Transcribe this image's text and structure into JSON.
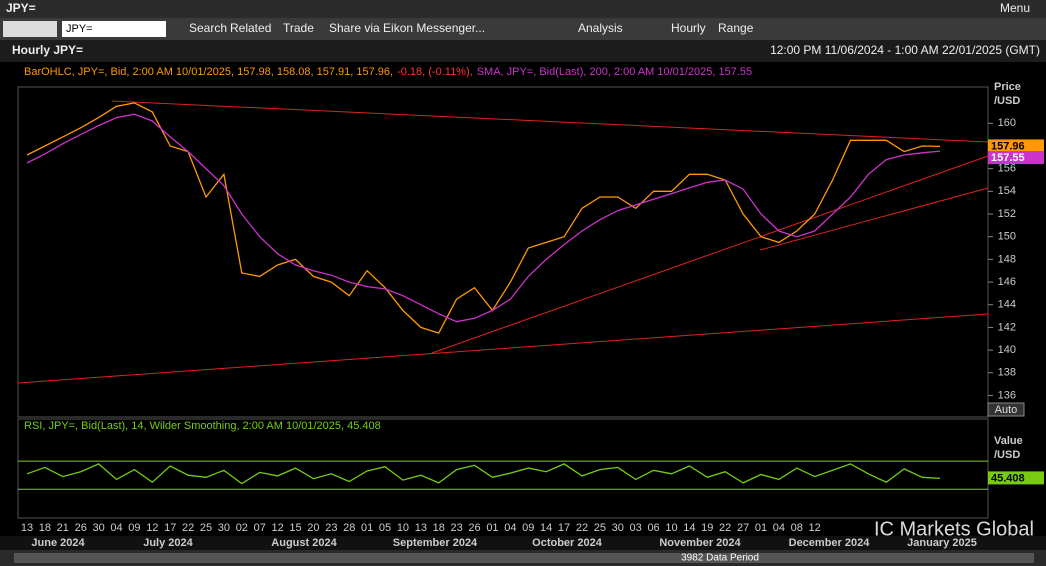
{
  "window": {
    "title": "JPY=",
    "menu": "Menu"
  },
  "toolbar": {
    "ric": "JPY=",
    "items": [
      "Search",
      "Related",
      "Trade",
      "Share via Eikon Messenger...",
      "Analysis",
      "Hourly",
      "Range"
    ]
  },
  "panel": {
    "title": "Hourly JPY=",
    "range": "12:00 PM 11/06/2024 - 1:00 AM 22/01/2025 (GMT)",
    "watermark": "IC Markets Global",
    "status": "3982 Data Period"
  },
  "chart_data": [
    {
      "type": "line",
      "y_label": [
        "Price",
        "/USD"
      ],
      "scale_button": "Auto",
      "categories": [
        "13",
        "18",
        "21",
        "26",
        "30",
        "04",
        "09",
        "12",
        "17",
        "22",
        "25",
        "30",
        "02",
        "07",
        "12",
        "15",
        "20",
        "23",
        "28",
        "01",
        "05",
        "10",
        "13",
        "18",
        "23",
        "26",
        "01",
        "04",
        "09",
        "14",
        "17",
        "22",
        "25",
        "30",
        "03",
        "06",
        "10",
        "14",
        "19",
        "22",
        "27",
        "01",
        "04",
        "08",
        "12",
        null,
        null,
        null,
        null,
        null,
        null,
        null
      ],
      "months": [
        "June 2024",
        "July 2024",
        "August 2024",
        "September 2024",
        "October 2024",
        "November 2024",
        "December 2024",
        "January 2025"
      ],
      "ylim": [
        134.1,
        163.2
      ],
      "yticks": [
        136,
        138,
        140,
        142,
        144,
        146,
        148,
        150,
        152,
        154,
        156,
        158,
        160
      ],
      "series": [
        {
          "name": "BarOHLC, JPY=, Bid, 2:00 AM 10/01/2025, 157.98, 158.08, 157.91, 157.96,",
          "change": "-0.18, (-0.11%),",
          "color": "#ff9900",
          "values": [
            157.2,
            158.0,
            158.8,
            159.6,
            160.5,
            161.5,
            161.8,
            161.0,
            158.0,
            157.5,
            153.5,
            155.5,
            146.8,
            146.5,
            147.5,
            148.0,
            146.5,
            146.0,
            144.8,
            147.0,
            145.5,
            143.5,
            142.0,
            141.5,
            144.5,
            145.5,
            143.5,
            146.0,
            149.0,
            149.5,
            150.0,
            152.5,
            153.5,
            153.5,
            152.5,
            154.0,
            154.0,
            155.5,
            155.5,
            155.0,
            152.0,
            150.0,
            149.5,
            150.5,
            152.0,
            155.0,
            158.5,
            158.5,
            158.5,
            157.5,
            158.0,
            157.96
          ]
        },
        {
          "name": "SMA, JPY=, Bid(Last), 200, 2:00 AM 10/01/2025, 157.55",
          "color": "#cc33cc",
          "values": [
            156.5,
            157.3,
            158.2,
            159.0,
            159.8,
            160.5,
            160.8,
            160.2,
            158.8,
            157.5,
            156.0,
            154.5,
            152.0,
            150.0,
            148.5,
            147.5,
            147.0,
            146.6,
            146.0,
            145.6,
            145.4,
            144.8,
            144.0,
            143.2,
            142.5,
            142.8,
            143.5,
            144.5,
            146.5,
            148.0,
            149.3,
            150.5,
            151.5,
            152.3,
            152.8,
            153.3,
            153.8,
            154.3,
            154.8,
            155.0,
            154.2,
            152.0,
            150.5,
            150.0,
            150.5,
            152.0,
            153.5,
            155.5,
            156.8,
            157.2,
            157.4,
            157.55
          ]
        }
      ]
    },
    {
      "type": "line",
      "y_label": [
        "Value",
        "/USD"
      ],
      "ylim": [
        -11,
        130
      ],
      "levels": [
        30,
        70
      ],
      "series": [
        {
          "name": "RSI, JPY=, Bid(Last), 14, Wilder Smoothing, 2:00 AM 10/01/2025, 45.408",
          "color": "#77cc11",
          "values": [
            52,
            61,
            48,
            55,
            66,
            44,
            58,
            40,
            63,
            50,
            47,
            57,
            38,
            54,
            49,
            60,
            45,
            52,
            41,
            56,
            62,
            43,
            50,
            39,
            58,
            64,
            47,
            53,
            60,
            55,
            66,
            49,
            58,
            61,
            44,
            57,
            52,
            63,
            47,
            55,
            39,
            51,
            44,
            60,
            48,
            57,
            66,
            52,
            40,
            59,
            47,
            45.408
          ]
        }
      ]
    }
  ]
}
